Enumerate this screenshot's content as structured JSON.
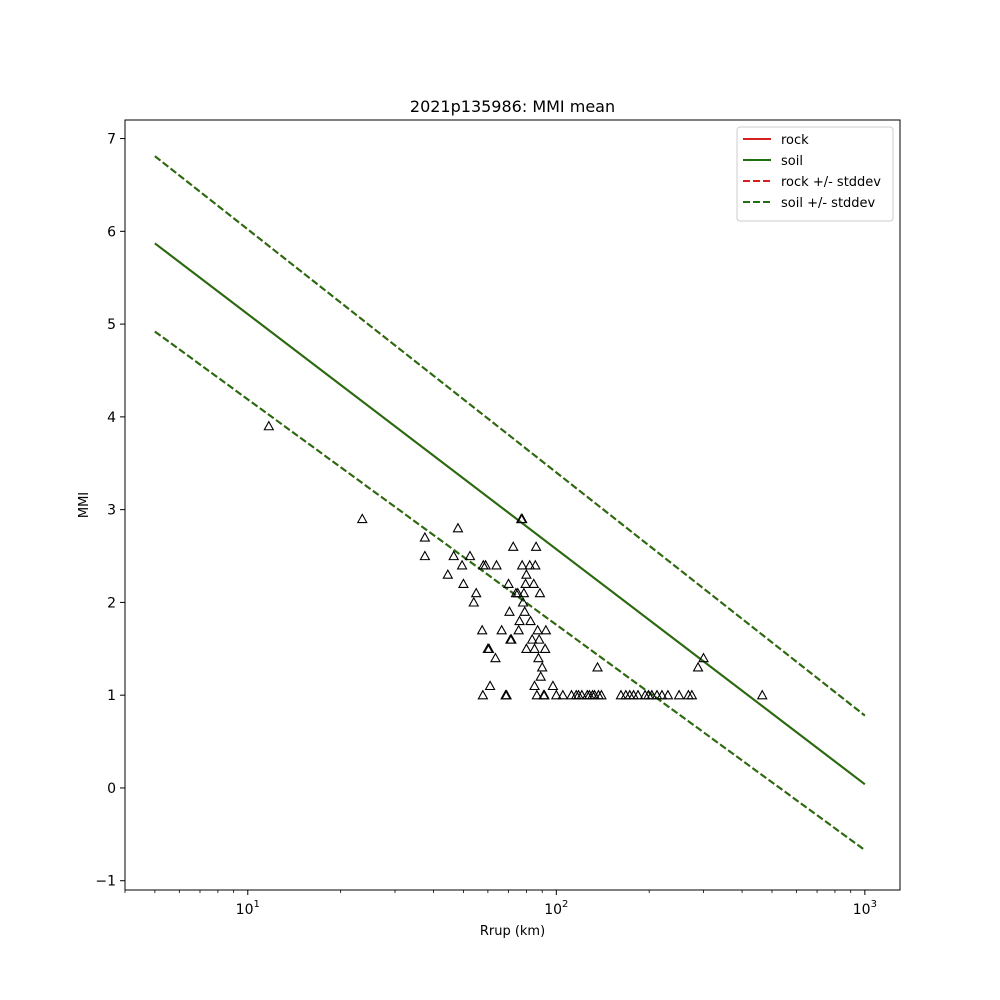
{
  "chart_data": {
    "type": "scatter",
    "title": "2021p135986: MMI mean",
    "xlabel": "Rrup (km)",
    "ylabel": "MMI",
    "xscale": "log",
    "xlim": [
      4,
      1300
    ],
    "ylim": [
      -1.1,
      7.2
    ],
    "x_ticks": [
      {
        "value": 10,
        "base": "10",
        "exp": "1"
      },
      {
        "value": 100,
        "base": "10",
        "exp": "2"
      },
      {
        "value": 1000,
        "base": "10",
        "exp": "3"
      }
    ],
    "y_ticks": [
      {
        "value": -1,
        "label": "−1"
      },
      {
        "value": 0,
        "label": "0"
      },
      {
        "value": 1,
        "label": "1"
      },
      {
        "value": 2,
        "label": "2"
      },
      {
        "value": 3,
        "label": "3"
      },
      {
        "value": 4,
        "label": "4"
      },
      {
        "value": 5,
        "label": "5"
      },
      {
        "value": 6,
        "label": "6"
      },
      {
        "value": 7,
        "label": "7"
      }
    ],
    "legend_position": "top-right",
    "lines": [
      {
        "name": "rock",
        "color": "#d62020",
        "dash": false,
        "points": [
          [
            5,
            5.87
          ],
          [
            1000,
            0.04
          ]
        ]
      },
      {
        "name": "soil",
        "color": "#207010",
        "dash": false,
        "points": [
          [
            5,
            5.87
          ],
          [
            1000,
            0.04
          ]
        ]
      },
      {
        "name": "rock +/- stddev",
        "color": "#d62020",
        "dash": true,
        "points_upper": [
          [
            5,
            6.81
          ],
          [
            1000,
            0.78
          ]
        ],
        "points_lower": [
          [
            5,
            4.92
          ],
          [
            1000,
            -0.67
          ]
        ]
      },
      {
        "name": "soil +/- stddev",
        "color": "#207010",
        "dash": true,
        "points_upper": [
          [
            5,
            6.81
          ],
          [
            1000,
            0.78
          ]
        ],
        "points_lower": [
          [
            5,
            4.92
          ],
          [
            1000,
            -0.67
          ]
        ]
      }
    ],
    "legend": [
      {
        "name": "rock",
        "color": "#d62020",
        "dash": false
      },
      {
        "name": "soil",
        "color": "#207010",
        "dash": false
      },
      {
        "name": "rock +/- stddev",
        "color": "#d62020",
        "dash": true
      },
      {
        "name": "soil +/- stddev",
        "color": "#207010",
        "dash": true
      }
    ],
    "stations": [
      [
        11.7,
        3.9
      ],
      [
        23.5,
        2.9
      ],
      [
        37.5,
        2.7
      ],
      [
        37.5,
        2.5
      ],
      [
        44.5,
        2.3
      ],
      [
        46.5,
        2.5
      ],
      [
        48.0,
        2.8
      ],
      [
        49.5,
        2.4
      ],
      [
        50.0,
        2.2
      ],
      [
        52.5,
        2.5
      ],
      [
        54.0,
        2.0
      ],
      [
        55.0,
        2.1
      ],
      [
        57.5,
        1.7
      ],
      [
        58.0,
        2.4
      ],
      [
        59.0,
        2.4
      ],
      [
        60.0,
        1.5
      ],
      [
        60.5,
        1.5
      ],
      [
        61.0,
        1.1
      ],
      [
        57.8,
        1.0
      ],
      [
        63.5,
        1.4
      ],
      [
        64.0,
        2.4
      ],
      [
        66.5,
        1.7
      ],
      [
        68.5,
        1.0
      ],
      [
        69.0,
        1.0
      ],
      [
        70.0,
        2.2
      ],
      [
        70.5,
        1.9
      ],
      [
        71.0,
        1.6
      ],
      [
        71.5,
        1.6
      ],
      [
        72.5,
        2.6
      ],
      [
        74.0,
        2.1
      ],
      [
        75.0,
        2.1
      ],
      [
        75.5,
        1.7
      ],
      [
        76.0,
        1.8
      ],
      [
        77.0,
        2.9
      ],
      [
        77.5,
        2.9
      ],
      [
        77.5,
        2.4
      ],
      [
        78.0,
        2.0
      ],
      [
        78.5,
        2.1
      ],
      [
        79.0,
        1.9
      ],
      [
        79.5,
        2.2
      ],
      [
        80.0,
        2.3
      ],
      [
        80.0,
        1.5
      ],
      [
        82.0,
        2.4
      ],
      [
        82.5,
        1.8
      ],
      [
        83.5,
        1.6
      ],
      [
        84.5,
        2.2
      ],
      [
        85.0,
        1.5
      ],
      [
        85.0,
        1.1
      ],
      [
        85.5,
        2.4
      ],
      [
        86.0,
        2.6
      ],
      [
        86.5,
        1.0
      ],
      [
        87.0,
        1.7
      ],
      [
        87.5,
        1.4
      ],
      [
        88.0,
        1.6
      ],
      [
        88.5,
        2.1
      ],
      [
        89.0,
        1.2
      ],
      [
        90.0,
        1.3
      ],
      [
        91.0,
        1.0
      ],
      [
        91.5,
        1.0
      ],
      [
        92.0,
        1.5
      ],
      [
        92.5,
        1.7
      ],
      [
        97.5,
        1.1
      ],
      [
        100,
        1.0
      ],
      [
        105,
        1.0
      ],
      [
        112,
        1.0
      ],
      [
        116,
        1.0
      ],
      [
        118,
        1.0
      ],
      [
        121,
        1.0
      ],
      [
        126,
        1.0
      ],
      [
        128,
        1.0
      ],
      [
        131,
        1.0
      ],
      [
        133,
        1.0
      ],
      [
        136,
        1.3
      ],
      [
        137,
        1.0
      ],
      [
        140,
        1.0
      ],
      [
        162,
        1.0
      ],
      [
        168,
        1.0
      ],
      [
        173,
        1.0
      ],
      [
        178,
        1.0
      ],
      [
        184,
        1.0
      ],
      [
        194,
        1.0
      ],
      [
        199,
        1.0
      ],
      [
        204,
        1.0
      ],
      [
        212,
        1.0
      ],
      [
        220,
        1.0
      ],
      [
        230,
        1.0
      ],
      [
        250,
        1.0
      ],
      [
        268,
        1.0
      ],
      [
        275,
        1.0
      ],
      [
        288,
        1.3
      ],
      [
        300,
        1.4
      ],
      [
        465,
        1.0
      ]
    ]
  }
}
